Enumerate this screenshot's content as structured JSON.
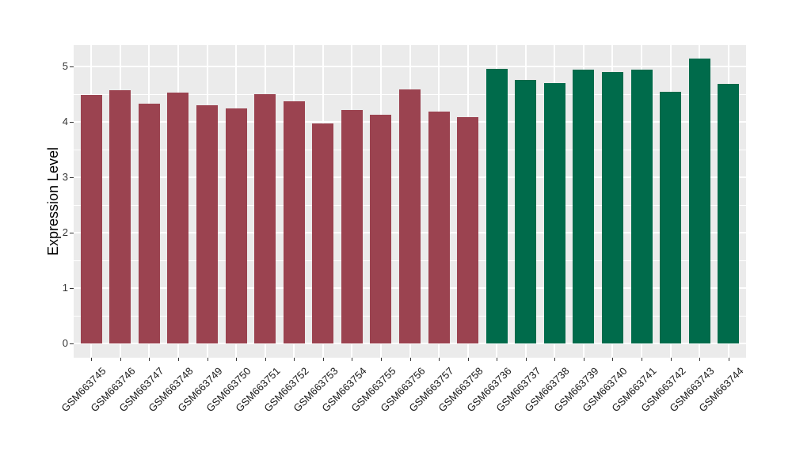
{
  "figure": {
    "background_color": "#ffffff",
    "panel_background_color": "#ebebeb",
    "gridline_color": "#ffffff",
    "axis_text_color": "#333333",
    "axis_title_color": "#000000"
  },
  "chart_data": {
    "type": "bar",
    "title": "",
    "xlabel": "",
    "ylabel": "Expression Level",
    "ylim": [
      0,
      5.39
    ],
    "yticks": [
      0,
      1,
      2,
      3,
      4,
      5
    ],
    "grid": "on",
    "legend": "none",
    "x_label_rotation_deg": 45,
    "categories": [
      "GSM663745",
      "GSM663746",
      "GSM663747",
      "GSM663748",
      "GSM663749",
      "GSM663750",
      "GSM663751",
      "GSM663752",
      "GSM663753",
      "GSM663754",
      "GSM663755",
      "GSM663756",
      "GSM663757",
      "GSM663758",
      "GSM663736",
      "GSM663737",
      "GSM663738",
      "GSM663739",
      "GSM663740",
      "GSM663741",
      "GSM663742",
      "GSM663743",
      "GSM663744"
    ],
    "values": [
      4.48,
      4.57,
      4.33,
      4.53,
      4.3,
      4.24,
      4.5,
      4.37,
      3.97,
      4.22,
      4.13,
      4.59,
      4.18,
      4.09,
      4.96,
      4.76,
      4.7,
      4.94,
      4.9,
      4.94,
      4.54,
      5.14,
      4.69
    ],
    "group_sizes": [
      14,
      9
    ],
    "group_colors": [
      "#9b4350",
      "#006b4b"
    ]
  }
}
